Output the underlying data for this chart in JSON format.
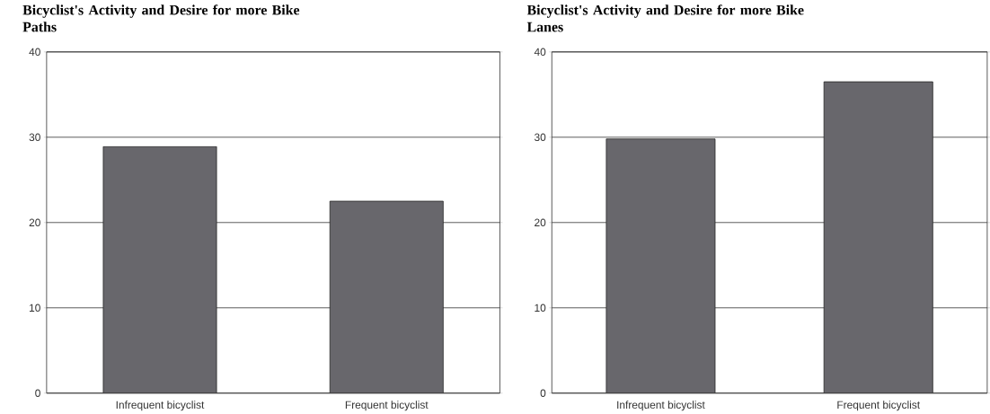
{
  "chart_data": [
    {
      "type": "bar",
      "title": "Bicyclist's Activity and Desire for more Bike Paths",
      "categories": [
        "Infrequent bicyclist",
        "Frequent bicyclist"
      ],
      "values": [
        28.9,
        22.5
      ],
      "color": "#68676c",
      "ylim": [
        0,
        40
      ],
      "yticks": [
        0,
        10,
        20,
        30,
        40
      ],
      "grid": "y"
    },
    {
      "type": "bar",
      "title": "Bicyclist's Activity and Desire for more Bike Lanes",
      "categories": [
        "Infrequent bicyclist",
        "Frequent bicyclist"
      ],
      "values": [
        29.8,
        36.5
      ],
      "color": "#68676c",
      "ylim": [
        0,
        40
      ],
      "yticks": [
        0,
        10,
        20,
        30,
        40
      ],
      "grid": "y"
    }
  ]
}
